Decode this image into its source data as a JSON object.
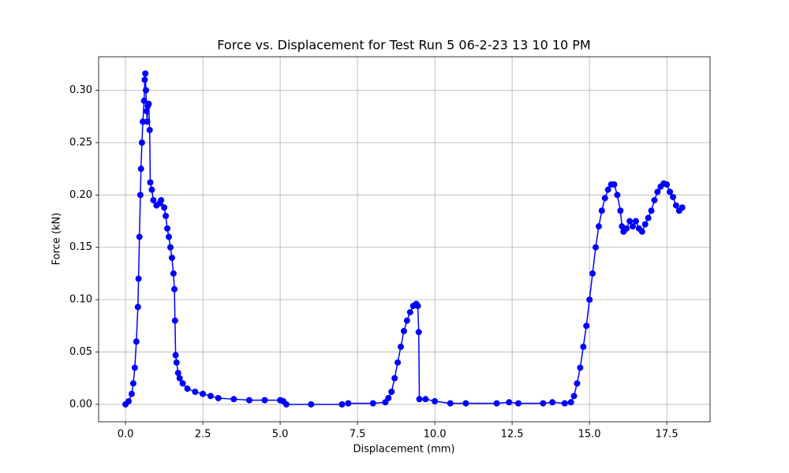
{
  "chart_data": {
    "type": "line",
    "title": "Force vs. Displacement for Test Run 5 06-2-23 13 10 10 PM",
    "x_label": "Displacement (mm)",
    "y_label": "Force (kN)",
    "series": [
      {
        "color": "#0000ff",
        "x": [
          0,
          0.1,
          0.2,
          0.25,
          0.3,
          0.35,
          0.4,
          0.42,
          0.45,
          0.48,
          0.5,
          0.53,
          0.56,
          0.6,
          0.62,
          0.64,
          0.66,
          0.68,
          0.7,
          0.72,
          0.75,
          0.78,
          0.8,
          0.85,
          0.9,
          1.0,
          1.1,
          1.15,
          1.25,
          1.3,
          1.35,
          1.4,
          1.45,
          1.5,
          1.55,
          1.58,
          1.6,
          1.62,
          1.65,
          1.7,
          1.75,
          1.85,
          2.0,
          2.25,
          2.5,
          2.75,
          3.0,
          3.5,
          4.0,
          4.5,
          5.0,
          5.1,
          5.2,
          6.0,
          7.0,
          7.2,
          8.0,
          8.4,
          8.5,
          8.6,
          8.7,
          8.8,
          8.9,
          9.0,
          9.1,
          9.2,
          9.3,
          9.4,
          9.45,
          9.48,
          9.5,
          9.7,
          10.0,
          10.5,
          11.0,
          12.0,
          12.4,
          12.7,
          13.5,
          13.8,
          14.2,
          14.4,
          14.5,
          14.6,
          14.7,
          14.8,
          14.9,
          15.0,
          15.1,
          15.2,
          15.3,
          15.4,
          15.5,
          15.6,
          15.7,
          15.8,
          15.9,
          16.0,
          16.05,
          16.1,
          16.2,
          16.3,
          16.4,
          16.5,
          16.6,
          16.7,
          16.8,
          16.9,
          17.0,
          17.1,
          17.2,
          17.3,
          17.4,
          17.5,
          17.6,
          17.7,
          17.8,
          17.9,
          18.0
        ],
        "values": [
          0,
          0.003,
          0.01,
          0.02,
          0.035,
          0.06,
          0.093,
          0.12,
          0.16,
          0.2,
          0.225,
          0.25,
          0.27,
          0.29,
          0.31,
          0.316,
          0.3,
          0.28,
          0.27,
          0.285,
          0.287,
          0.262,
          0.212,
          0.205,
          0.195,
          0.19,
          0.192,
          0.195,
          0.188,
          0.18,
          0.168,
          0.16,
          0.15,
          0.14,
          0.125,
          0.11,
          0.08,
          0.047,
          0.04,
          0.03,
          0.025,
          0.02,
          0.015,
          0.012,
          0.01,
          0.008,
          0.006,
          0.005,
          0.004,
          0.004,
          0.004,
          0.003,
          0,
          0,
          0,
          0.001,
          0.001,
          0.002,
          0.006,
          0.012,
          0.025,
          0.04,
          0.055,
          0.07,
          0.08,
          0.088,
          0.094,
          0.096,
          0.094,
          0.069,
          0.005,
          0.005,
          0.003,
          0.001,
          0.001,
          0.001,
          0.002,
          0.001,
          0.001,
          0.002,
          0.001,
          0.002,
          0.008,
          0.02,
          0.035,
          0.055,
          0.075,
          0.1,
          0.125,
          0.15,
          0.17,
          0.185,
          0.197,
          0.205,
          0.21,
          0.21,
          0.2,
          0.185,
          0.17,
          0.165,
          0.168,
          0.175,
          0.17,
          0.175,
          0.168,
          0.165,
          0.172,
          0.178,
          0.185,
          0.195,
          0.203,
          0.208,
          0.211,
          0.21,
          0.203,
          0.198,
          0.19,
          0.185,
          0.188
        ]
      }
    ],
    "xlim": [
      -0.87,
      18.9
    ],
    "ylim": [
      -0.0166,
      0.332
    ],
    "xticks": [
      {
        "value": 0,
        "label": "0.0"
      },
      {
        "value": 2.5,
        "label": "2.5"
      },
      {
        "value": 5,
        "label": "5.0"
      },
      {
        "value": 7.5,
        "label": "7.5"
      },
      {
        "value": 10,
        "label": "10.0"
      },
      {
        "value": 12.5,
        "label": "12.5"
      },
      {
        "value": 15,
        "label": "15.0"
      },
      {
        "value": 17.5,
        "label": "17.5"
      }
    ],
    "yticks": [
      {
        "value": 0,
        "label": "0.00"
      },
      {
        "value": 0.05,
        "label": "0.05"
      },
      {
        "value": 0.1,
        "label": "0.10"
      },
      {
        "value": 0.15,
        "label": "0.15"
      },
      {
        "value": 0.2,
        "label": "0.20"
      },
      {
        "value": 0.25,
        "label": "0.25"
      },
      {
        "value": 0.3,
        "label": "0.30"
      }
    ],
    "grid": true
  }
}
